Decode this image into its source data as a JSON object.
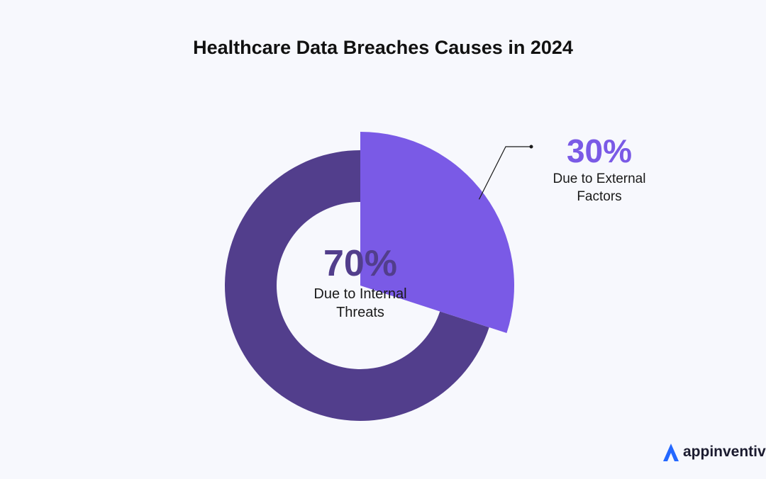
{
  "chart_data": {
    "type": "pie",
    "title": "Healthcare Data Breaches Causes in 2024",
    "slices": [
      {
        "label": "Due to Internal Threats",
        "value": 70,
        "value_label": "70%",
        "color": "#523e8c"
      },
      {
        "label": "Due to External Factors",
        "value": 30,
        "value_label": "30%",
        "color": "#7a5ae6"
      }
    ],
    "donut": true,
    "emphasized_slice": "Due to External Factors"
  },
  "brand": {
    "name": "appinventiv",
    "icon": "appinventiv-logo-icon",
    "color": "#2468ff"
  }
}
